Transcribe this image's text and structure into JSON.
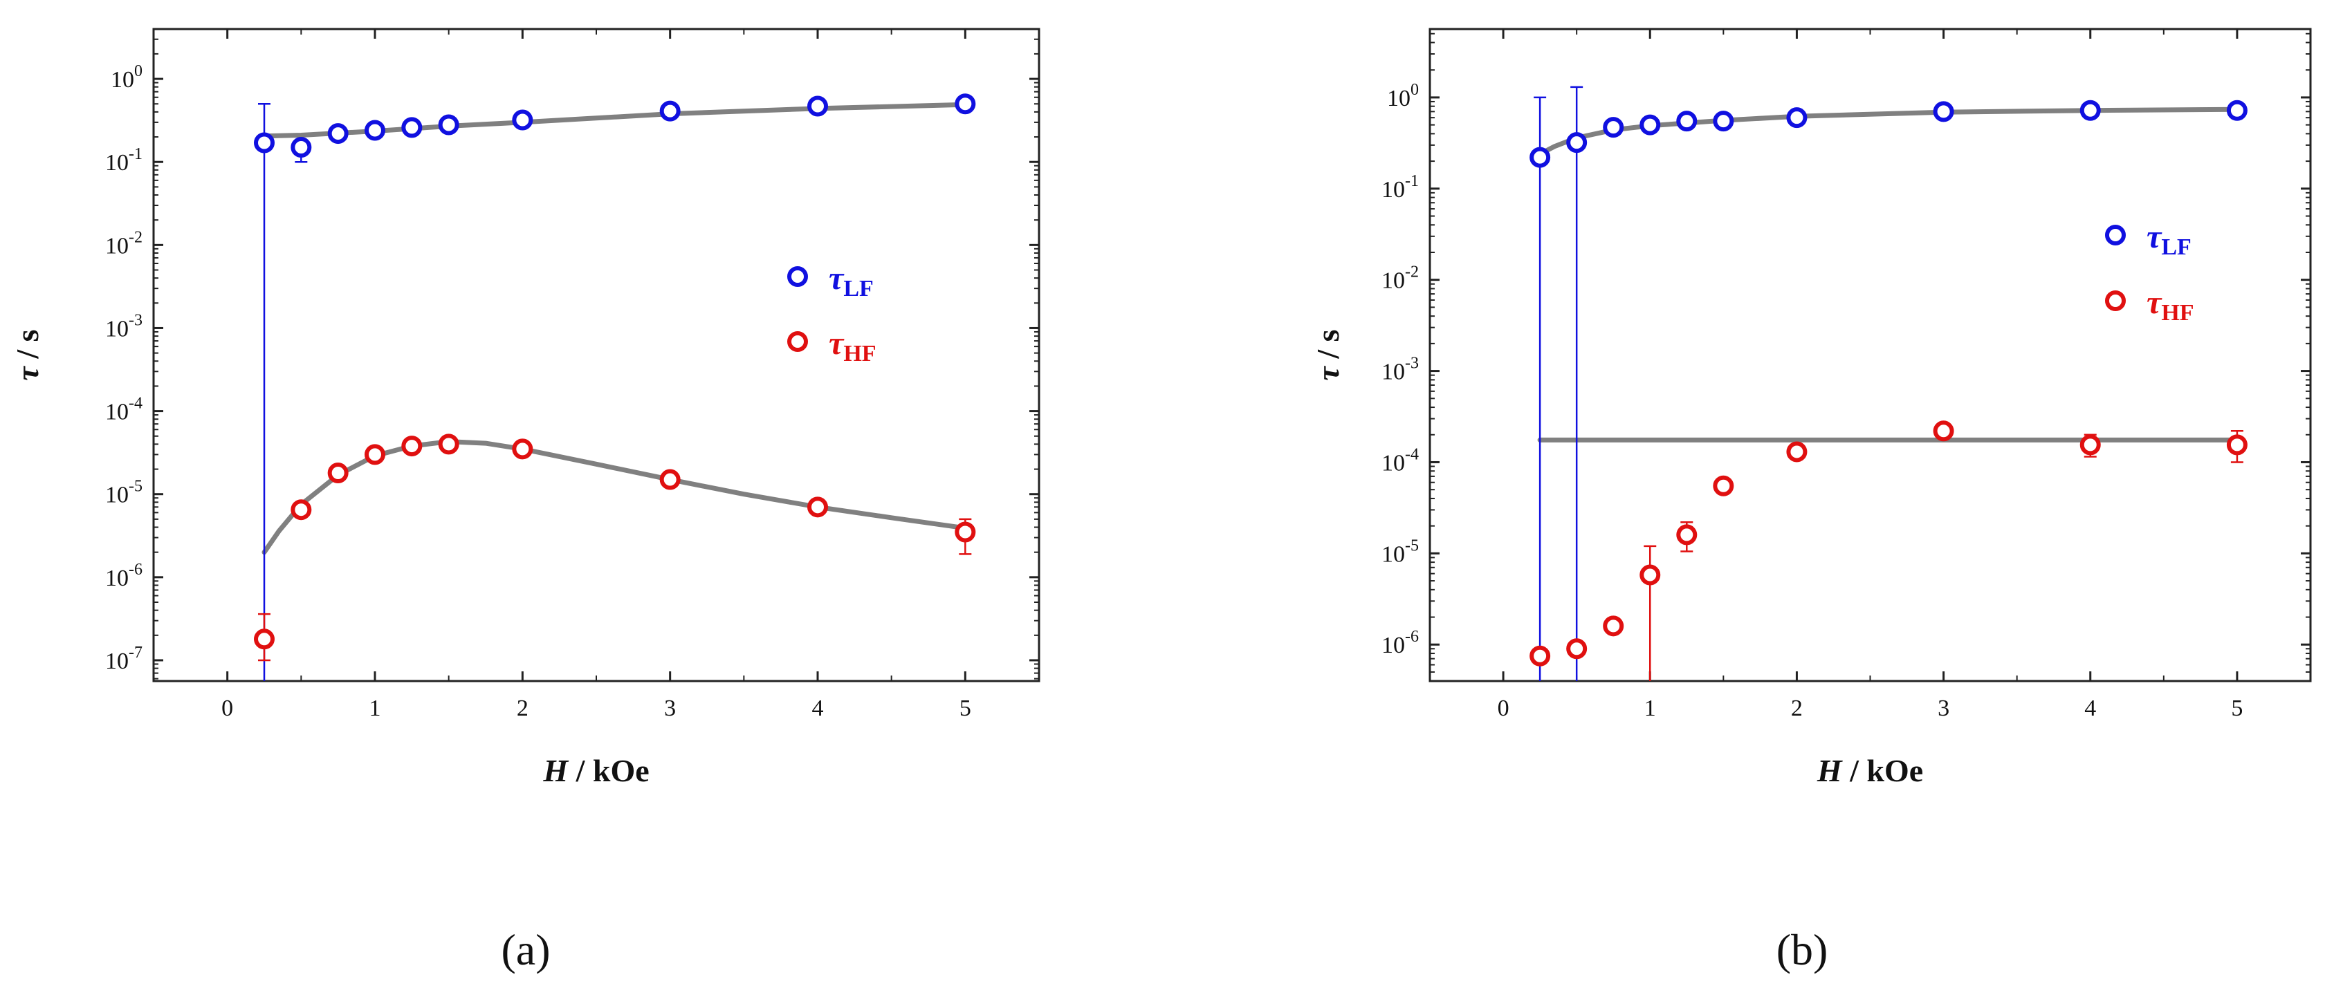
{
  "chart_data": [
    {
      "type": "scatter",
      "panel_label": "(a)",
      "xlabel": "H / kOe",
      "xlabel_italic_part": "H",
      "xlabel_rest": " / kOe",
      "ylabel": "τ / s",
      "ylabel_symbol": "τ",
      "ylabel_rest": " / s",
      "xlim": [
        -0.5,
        5.5
      ],
      "xticks": [
        0,
        1,
        2,
        3,
        4,
        5
      ],
      "yscale": "log",
      "ylim_exp": [
        -7.25,
        0.6
      ],
      "yticks_exp": [
        -7,
        -6,
        -5,
        -4,
        -3,
        -2,
        -1,
        0
      ],
      "legend": [
        {
          "symbol": "τ",
          "sub": "LF",
          "color": "#1010e0"
        },
        {
          "symbol": "τ",
          "sub": "HF",
          "color": "#e01010"
        }
      ],
      "series": [
        {
          "name": "τLF",
          "color": "#1010e0",
          "x": [
            0.25,
            0.5,
            0.75,
            1.0,
            1.25,
            1.5,
            2.0,
            3.0,
            4.0,
            5.0
          ],
          "y": [
            0.17,
            0.15,
            0.22,
            0.24,
            0.26,
            0.28,
            0.32,
            0.41,
            0.47,
            0.5
          ],
          "err_hi": [
            0.5,
            0.18,
            0.25,
            0.27,
            0.28,
            0.3,
            0.34,
            0.43,
            0.49,
            0.52
          ],
          "err_lo": [
            1e-08,
            0.1,
            0.19,
            0.21,
            0.24,
            0.26,
            0.3,
            0.39,
            0.45,
            0.48
          ]
        },
        {
          "name": "τHF",
          "color": "#e01010",
          "x": [
            0.25,
            0.5,
            0.75,
            1.0,
            1.25,
            1.5,
            2.0,
            3.0,
            4.0,
            5.0
          ],
          "y": [
            1.8e-07,
            6.5e-06,
            1.8e-05,
            3e-05,
            3.8e-05,
            4e-05,
            3.5e-05,
            1.5e-05,
            7e-06,
            3.5e-06
          ],
          "err_hi": [
            3.6e-07,
            7.5e-06,
            2e-05,
            3.3e-05,
            4.1e-05,
            4.3e-05,
            3.8e-05,
            1.7e-05,
            7.8e-06,
            5e-06
          ],
          "err_lo": [
            1e-07,
            5.6e-06,
            1.6e-05,
            2.7e-05,
            3.5e-05,
            3.7e-05,
            3.2e-05,
            1.3e-05,
            6.2e-06,
            1.9e-06
          ]
        }
      ],
      "fit_curves": [
        {
          "x": [
            0.25,
            0.5,
            1.0,
            1.5,
            2.0,
            3.0,
            4.0,
            5.0
          ],
          "y": [
            0.205,
            0.21,
            0.235,
            0.27,
            0.3,
            0.38,
            0.44,
            0.49
          ]
        },
        {
          "x": [
            0.25,
            0.35,
            0.5,
            0.75,
            1.0,
            1.25,
            1.5,
            1.75,
            2.0,
            2.5,
            3.0,
            3.5,
            4.0,
            4.5,
            5.0
          ],
          "y": [
            2e-06,
            3.6e-06,
            7.5e-06,
            1.7e-05,
            2.9e-05,
            3.8e-05,
            4.3e-05,
            4.1e-05,
            3.5e-05,
            2.3e-05,
            1.5e-05,
            1e-05,
            7e-06,
            5.2e-06,
            3.9e-06
          ]
        }
      ]
    },
    {
      "type": "scatter",
      "panel_label": "(b)",
      "xlabel": "H / kOe",
      "xlabel_italic_part": "H",
      "xlabel_rest": " / kOe",
      "ylabel": "τ / s",
      "ylabel_symbol": "τ",
      "ylabel_rest": " / s",
      "xlim": [
        -0.5,
        5.5
      ],
      "xticks": [
        0,
        1,
        2,
        3,
        4,
        5
      ],
      "yscale": "log",
      "ylim_exp": [
        -6.4,
        0.75
      ],
      "yticks_exp": [
        -6,
        -5,
        -4,
        -3,
        -2,
        -1,
        0
      ],
      "legend": [
        {
          "symbol": "τ",
          "sub": "LF",
          "color": "#1010e0"
        },
        {
          "symbol": "τ",
          "sub": "HF",
          "color": "#e01010"
        }
      ],
      "series": [
        {
          "name": "τLF",
          "color": "#1010e0",
          "x": [
            0.25,
            0.5,
            0.75,
            1.0,
            1.25,
            1.5,
            2.0,
            3.0,
            4.0,
            5.0
          ],
          "y": [
            0.22,
            0.32,
            0.47,
            0.5,
            0.55,
            0.55,
            0.6,
            0.7,
            0.72,
            0.72
          ],
          "err_hi": [
            1.0,
            1.3,
            0.52,
            0.55,
            0.6,
            0.6,
            0.65,
            0.76,
            0.78,
            0.78
          ],
          "err_lo": [
            1e-08,
            1e-08,
            0.42,
            0.45,
            0.5,
            0.5,
            0.55,
            0.64,
            0.66,
            0.66
          ]
        },
        {
          "name": "τHF",
          "color": "#e01010",
          "x": [
            0.25,
            0.5,
            0.75,
            1.0,
            1.25,
            1.5,
            2.0,
            3.0,
            4.0,
            5.0
          ],
          "y": [
            7.5e-07,
            9e-07,
            1.6e-06,
            5.8e-06,
            1.6e-05,
            5.5e-05,
            0.00013,
            0.00022,
            0.000155,
            0.000155
          ],
          "err_hi": [
            8.2e-07,
            9.8e-07,
            1.75e-06,
            1.2e-05,
            2.2e-05,
            6e-05,
            0.00014,
            0.00024,
            0.0002,
            0.00022
          ],
          "err_lo": [
            6.8e-07,
            8.2e-07,
            1.45e-06,
            1e-08,
            1.05e-05,
            5e-05,
            0.00012,
            0.0002,
            0.000115,
            0.0001
          ]
        }
      ],
      "fit_curves": [
        {
          "x": [
            0.25,
            0.35,
            0.5,
            0.75,
            1.0,
            1.5,
            2.0,
            3.0,
            4.0,
            5.0
          ],
          "y": [
            0.24,
            0.29,
            0.36,
            0.44,
            0.49,
            0.56,
            0.62,
            0.69,
            0.72,
            0.74
          ]
        },
        {
          "x": [
            0.25,
            5.0
          ],
          "y": [
            0.000175,
            0.000175
          ]
        }
      ]
    }
  ]
}
